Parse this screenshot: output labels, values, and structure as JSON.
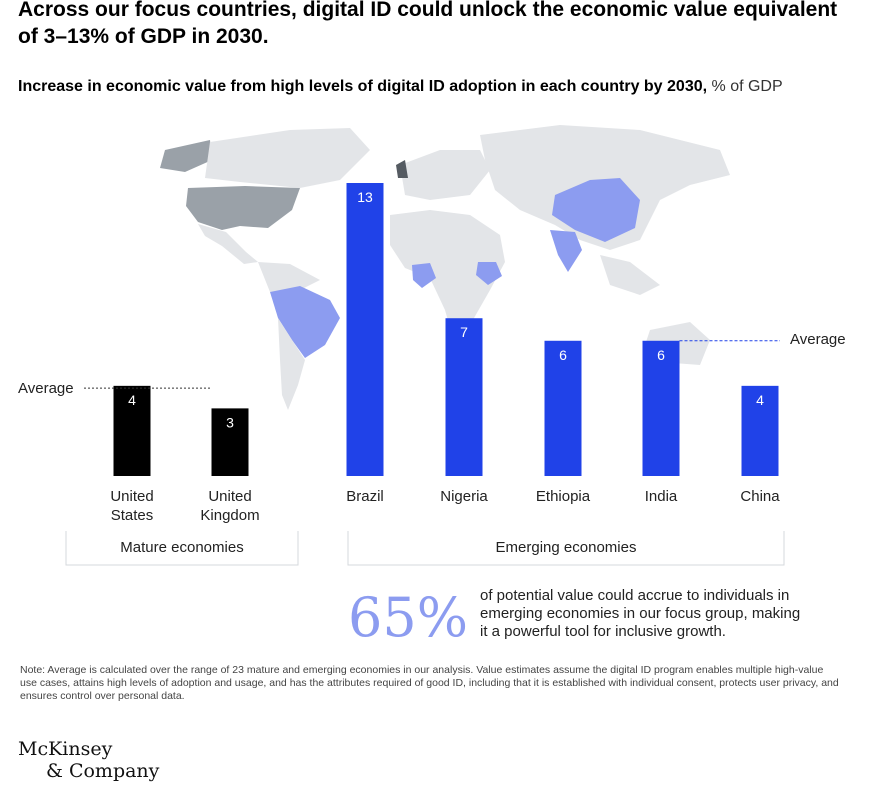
{
  "title": "Across our focus countries, digital ID could unlock the economic value equivalent of 3–13% of GDP in 2030.",
  "subtitle": "Increase in economic value from high levels of digital ID adoption in each country by 2030,",
  "subtitle_unit": "% of GDP",
  "chart_data": {
    "type": "bar",
    "title": "Increase in economic value from high levels of digital ID adoption in each country by 2030",
    "ylabel": "% of GDP",
    "categories": [
      "United States",
      "United Kingdom",
      "Brazil",
      "Nigeria",
      "Ethiopia",
      "India",
      "China"
    ],
    "category_lines": [
      [
        "United",
        "States"
      ],
      [
        "United",
        "Kingdom"
      ],
      [
        "Brazil"
      ],
      [
        "Nigeria"
      ],
      [
        "Ethiopia"
      ],
      [
        "India"
      ],
      [
        "China"
      ]
    ],
    "values": [
      4,
      3,
      13,
      7,
      6,
      6,
      4
    ],
    "groups": [
      "mature",
      "mature",
      "emerging",
      "emerging",
      "emerging",
      "emerging",
      "emerging"
    ],
    "group_labels": {
      "mature": "Mature economies",
      "emerging": "Emerging economies"
    },
    "averages": {
      "mature": 3.9,
      "emerging": 6.0
    },
    "average_label": "Average",
    "ylim": [
      0,
      13
    ],
    "colors": {
      "mature": "#000000",
      "emerging": "#2042e8",
      "map": "#e3e5e8",
      "map_mature": "#9aa1a8",
      "map_emerging": "#8c9cf0"
    }
  },
  "stat": {
    "value": "65%",
    "text": "of potential value could accrue to individuals in emerging economies in our focus group, making it a powerful tool for inclusive growth."
  },
  "note": "Note: Average is calculated over the range of 23 mature and emerging economies in our analysis. Value estimates assume the digital ID program enables multiple high-value use cases, attains high levels of adoption and usage, and has the attributes required of good ID, including that it is established with individual consent, protects user privacy, and ensures control over personal data.",
  "logo": {
    "line1": "McKinsey",
    "line2": "& Company"
  }
}
